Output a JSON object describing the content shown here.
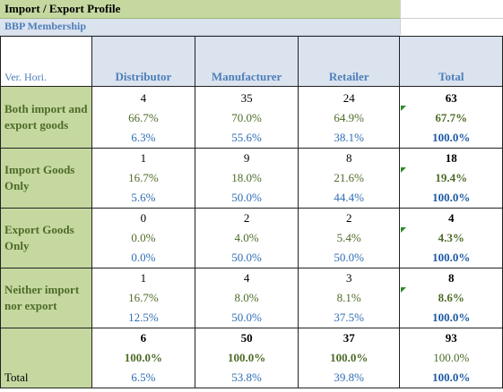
{
  "header": {
    "title": "Import / Export Profile",
    "subtitle": "BBP Membership"
  },
  "table": {
    "corner": "Ver. Hori.",
    "columns": [
      "Distributor",
      "Manufacturer",
      "Retailer",
      "Total"
    ],
    "rows": [
      {
        "label": "Both import and export goods",
        "cells": [
          {
            "count": "4",
            "pct": "66.7%",
            "col": "6.3%"
          },
          {
            "count": "35",
            "pct": "70.0%",
            "col": "55.6%"
          },
          {
            "count": "24",
            "pct": "64.9%",
            "col": "38.1%"
          },
          {
            "count": "63",
            "pct": "67.7%",
            "col": "100.0%"
          }
        ]
      },
      {
        "label": "Import Goods Only",
        "cells": [
          {
            "count": "1",
            "pct": "16.7%",
            "col": "5.6%"
          },
          {
            "count": "9",
            "pct": "18.0%",
            "col": "50.0%"
          },
          {
            "count": "8",
            "pct": "21.6%",
            "col": "44.4%"
          },
          {
            "count": "18",
            "pct": "19.4%",
            "col": "100.0%"
          }
        ]
      },
      {
        "label": "Export Goods Only",
        "cells": [
          {
            "count": "0",
            "pct": "0.0%",
            "col": "0.0%"
          },
          {
            "count": "2",
            "pct": "4.0%",
            "col": "50.0%"
          },
          {
            "count": "2",
            "pct": "5.4%",
            "col": "50.0%"
          },
          {
            "count": "4",
            "pct": "4.3%",
            "col": "100.0%"
          }
        ]
      },
      {
        "label": "Neither import nor export",
        "cells": [
          {
            "count": "1",
            "pct": "16.7%",
            "col": "12.5%"
          },
          {
            "count": "4",
            "pct": "8.0%",
            "col": "50.0%"
          },
          {
            "count": "3",
            "pct": "8.1%",
            "col": "37.5%"
          },
          {
            "count": "8",
            "pct": "8.6%",
            "col": "100.0%"
          }
        ]
      },
      {
        "label": "Total",
        "cells": [
          {
            "count": "6",
            "pct": "100.0%",
            "col": "6.5%"
          },
          {
            "count": "50",
            "pct": "100.0%",
            "col": "53.8%"
          },
          {
            "count": "37",
            "pct": "100.0%",
            "col": "39.8%"
          },
          {
            "count": "93",
            "pct": "100.0%",
            "col": "100.0%"
          }
        ]
      }
    ]
  },
  "colors": {
    "row_header_bg": "#c5d8a0",
    "col_header_bg": "#dbe3ef",
    "row_pct_text": "#4e6b28",
    "col_pct_text": "#2f6eb5",
    "comment_marker": "#2a8a2a"
  }
}
